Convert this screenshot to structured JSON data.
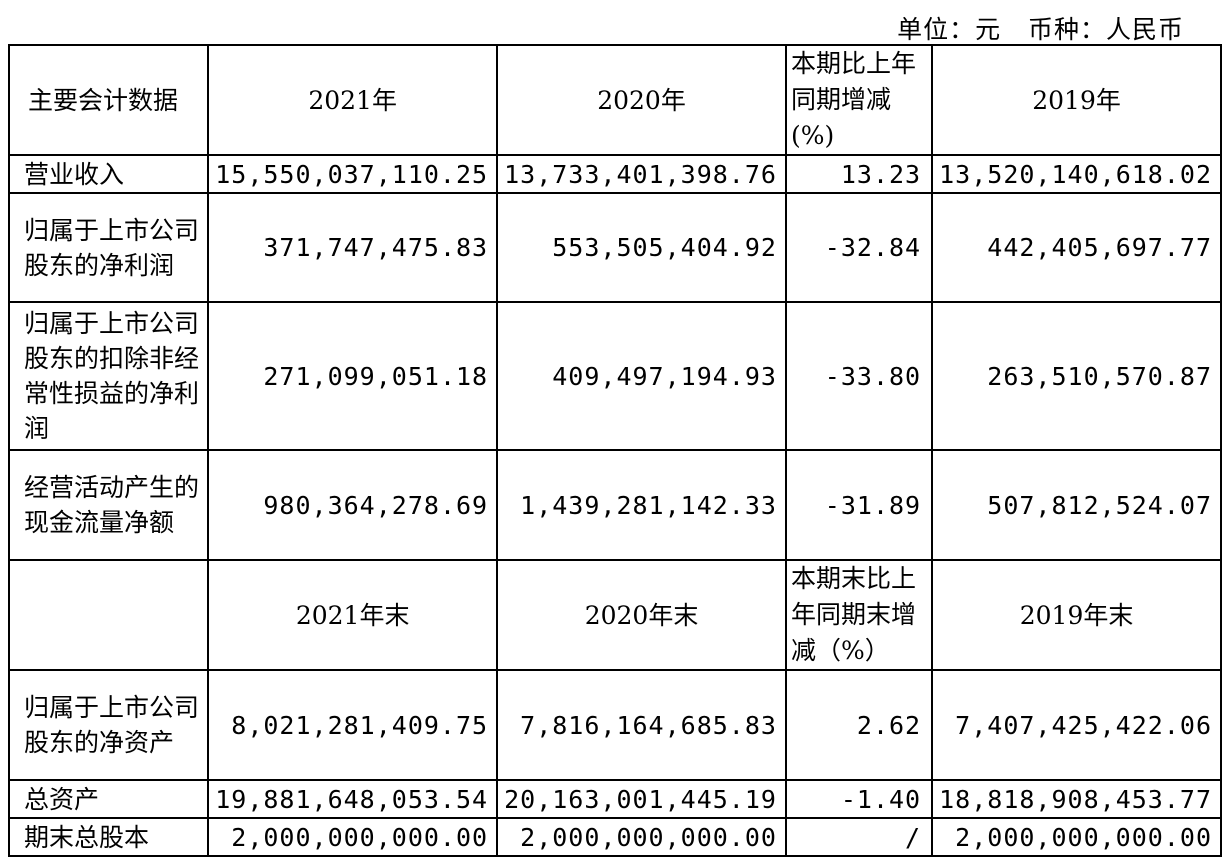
{
  "unit_line": "单位：元   币种：人民币",
  "table": {
    "header1": {
      "label": "主要会计数据",
      "col1": "2021年",
      "col2": "2020年",
      "change": "本期比上年同期增减(%)",
      "col3": "2019年"
    },
    "rows1": [
      {
        "label": "营业收入",
        "v2021": "15,550,037,110.25",
        "v2020": "13,733,401,398.76",
        "change": "13.23",
        "v2019": "13,520,140,618.02"
      },
      {
        "label": "归属于上市公司股东的净利润",
        "v2021": "371,747,475.83",
        "v2020": "553,505,404.92",
        "change": "-32.84",
        "v2019": "442,405,697.77"
      },
      {
        "label": "归属于上市公司股东的扣除非经常性损益的净利润",
        "v2021": "271,099,051.18",
        "v2020": "409,497,194.93",
        "change": "-33.80",
        "v2019": "263,510,570.87"
      },
      {
        "label": "经营活动产生的现金流量净额",
        "v2021": "980,364,278.69",
        "v2020": "1,439,281,142.33",
        "change": "-31.89",
        "v2019": "507,812,524.07"
      }
    ],
    "header2": {
      "label": "",
      "col1": "2021年末",
      "col2": "2020年末",
      "change": "本期末比上年同期末增减（%）",
      "col3": "2019年末"
    },
    "rows2": [
      {
        "label": "归属于上市公司股东的净资产",
        "v2021": "8,021,281,409.75",
        "v2020": "7,816,164,685.83",
        "change": "2.62",
        "v2019": "7,407,425,422.06"
      },
      {
        "label": "总资产",
        "v2021": "19,881,648,053.54",
        "v2020": "20,163,001,445.19",
        "change": "-1.40",
        "v2019": "18,818,908,453.77"
      },
      {
        "label": "期末总股本",
        "v2021": "2,000,000,000.00",
        "v2020": "2,000,000,000.00",
        "change": "/",
        "v2019": "2,000,000,000.00"
      }
    ]
  }
}
